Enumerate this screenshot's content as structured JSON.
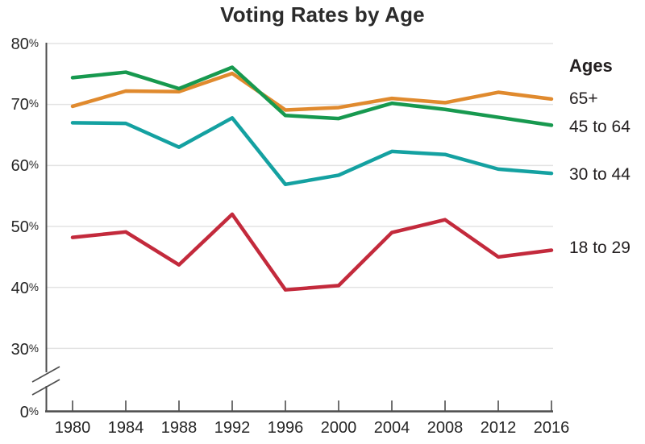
{
  "chart_data": {
    "type": "line",
    "title": "Voting Rates by Age",
    "x": [
      "1980",
      "1984",
      "1988",
      "1992",
      "1996",
      "2000",
      "2004",
      "2008",
      "2012",
      "2016"
    ],
    "series": [
      {
        "name": "65+",
        "color": "#e08a2e",
        "values": [
          69.7,
          72.2,
          72.1,
          75.1,
          69.1,
          69.5,
          71.0,
          70.3,
          72.0,
          70.9
        ]
      },
      {
        "name": "45 to 64",
        "color": "#17994f",
        "values": [
          74.4,
          75.3,
          72.6,
          76.1,
          68.2,
          67.7,
          70.2,
          69.2,
          67.9,
          66.6
        ]
      },
      {
        "name": "30 to 44",
        "color": "#14a1a1",
        "values": [
          67.0,
          66.9,
          63.0,
          67.8,
          56.9,
          58.4,
          62.3,
          61.8,
          59.4,
          58.7
        ]
      },
      {
        "name": "18 to 29",
        "color": "#c32a3c",
        "values": [
          48.2,
          49.1,
          43.7,
          52.0,
          39.6,
          40.3,
          49.0,
          51.1,
          45.0,
          46.1
        ]
      }
    ],
    "legend": {
      "title": "Ages",
      "position": "right"
    },
    "xlabel": "",
    "ylabel": "",
    "grid": "horizontal",
    "y_axis": {
      "unit": "%",
      "range": [
        0,
        80
      ],
      "axis_break_between": [
        0,
        30
      ],
      "gridline_values": [
        80,
        70,
        60,
        50,
        40,
        30
      ],
      "tick_labels": [
        {
          "value": "80",
          "suffix": "%"
        },
        {
          "value": "70",
          "suffix": "%"
        },
        {
          "value": "60",
          "suffix": "%"
        },
        {
          "value": "50",
          "suffix": "%"
        },
        {
          "value": "40",
          "suffix": "%"
        },
        {
          "value": "30",
          "suffix": "%"
        },
        {
          "value": "0",
          "suffix": "%"
        }
      ]
    },
    "colors": {
      "axis": "#4d4d4d",
      "gridline": "#e3e3e3",
      "text": "#262626"
    }
  }
}
